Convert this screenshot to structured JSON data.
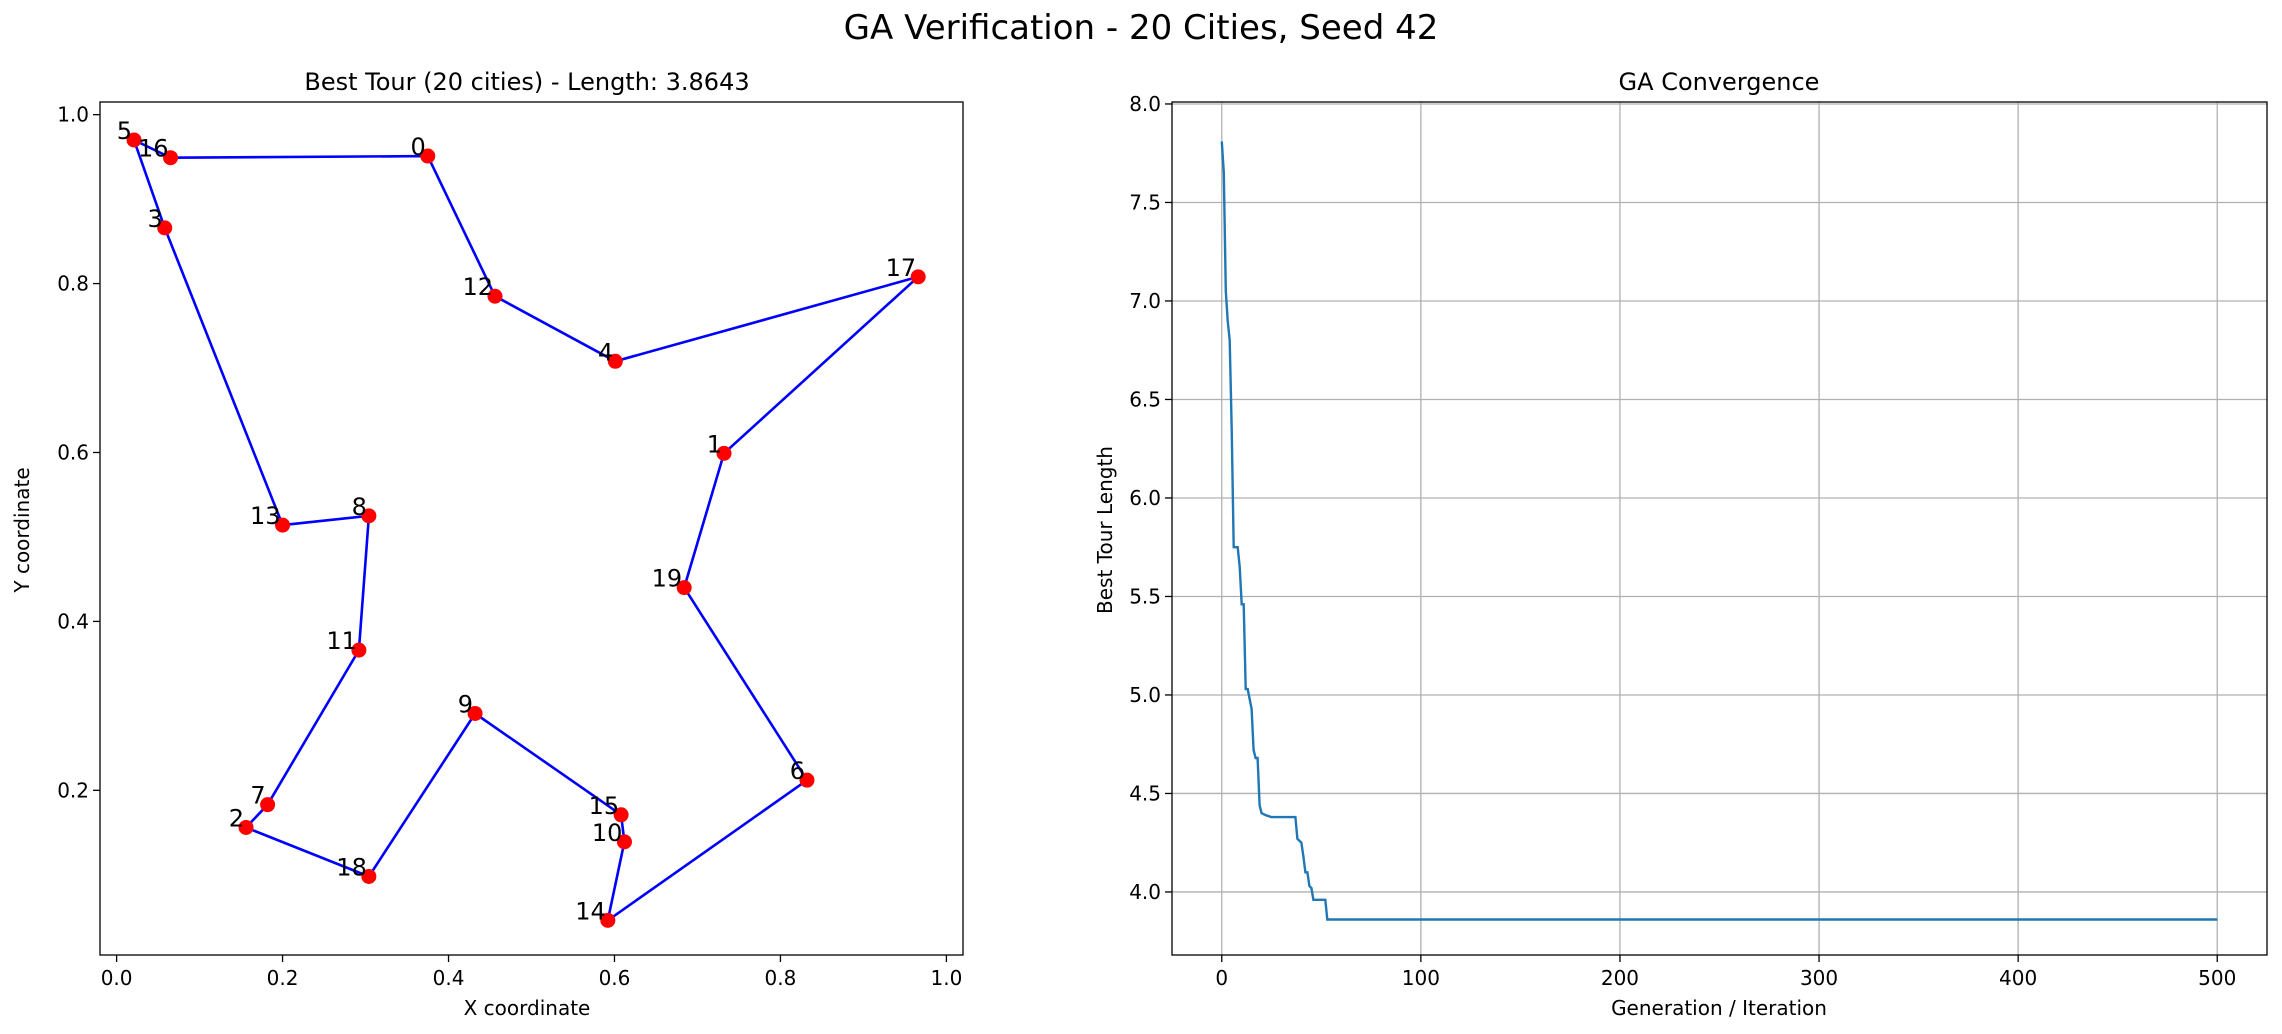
{
  "figure": {
    "title": "GA Verification - 20 Cities, Seed 42"
  },
  "chart_data": [
    {
      "type": "scatter",
      "title": "Best Tour (20 cities) - Length: 3.8643",
      "xlabel": "X coordinate",
      "ylabel": "Y coordinate",
      "xlim": [
        -0.02,
        1.02
      ],
      "ylim": [
        0.005,
        1.015
      ],
      "xticks": [
        0.0,
        0.2,
        0.4,
        0.6,
        0.8,
        1.0
      ],
      "xtick_labels": [
        "0.0",
        "0.2",
        "0.4",
        "0.6",
        "0.8",
        "1.0"
      ],
      "yticks": [
        0.2,
        0.4,
        0.6,
        0.8,
        1.0
      ],
      "ytick_labels": [
        "0.2",
        "0.4",
        "0.6",
        "0.8",
        "1.0"
      ],
      "grid": false,
      "line_color": "#0000ff",
      "point_color": "#ff0000",
      "cities": [
        {
          "id": "0",
          "x": 0.375,
          "y": 0.951
        },
        {
          "id": "1",
          "x": 0.732,
          "y": 0.599
        },
        {
          "id": "2",
          "x": 0.156,
          "y": 0.156
        },
        {
          "id": "3",
          "x": 0.058,
          "y": 0.866
        },
        {
          "id": "4",
          "x": 0.601,
          "y": 0.708
        },
        {
          "id": "5",
          "x": 0.021,
          "y": 0.97
        },
        {
          "id": "6",
          "x": 0.832,
          "y": 0.212
        },
        {
          "id": "7",
          "x": 0.182,
          "y": 0.183
        },
        {
          "id": "8",
          "x": 0.304,
          "y": 0.525
        },
        {
          "id": "9",
          "x": 0.432,
          "y": 0.291
        },
        {
          "id": "10",
          "x": 0.612,
          "y": 0.139
        },
        {
          "id": "11",
          "x": 0.292,
          "y": 0.366
        },
        {
          "id": "12",
          "x": 0.456,
          "y": 0.785
        },
        {
          "id": "13",
          "x": 0.2,
          "y": 0.514
        },
        {
          "id": "14",
          "x": 0.592,
          "y": 0.046
        },
        {
          "id": "15",
          "x": 0.608,
          "y": 0.171
        },
        {
          "id": "16",
          "x": 0.065,
          "y": 0.949
        },
        {
          "id": "17",
          "x": 0.966,
          "y": 0.808
        },
        {
          "id": "18",
          "x": 0.304,
          "y": 0.098
        },
        {
          "id": "19",
          "x": 0.684,
          "y": 0.44
        }
      ],
      "tour": [
        0,
        16,
        5,
        3,
        13,
        8,
        11,
        7,
        2,
        18,
        9,
        15,
        10,
        14,
        6,
        19,
        1,
        17,
        4,
        12
      ]
    },
    {
      "type": "line",
      "title": "GA Convergence",
      "xlabel": "Generation / Iteration",
      "ylabel": "Best Tour Length",
      "xlim": [
        -25,
        525
      ],
      "ylim": [
        3.68,
        8.01
      ],
      "xticks": [
        0,
        100,
        200,
        300,
        400,
        500
      ],
      "xtick_labels": [
        "0",
        "100",
        "200",
        "300",
        "400",
        "500"
      ],
      "yticks": [
        4.0,
        4.5,
        5.0,
        5.5,
        6.0,
        6.5,
        7.0,
        7.5,
        8.0
      ],
      "ytick_labels": [
        "4.0",
        "4.5",
        "5.0",
        "5.5",
        "6.0",
        "6.5",
        "7.0",
        "7.5",
        "8.0"
      ],
      "grid": true,
      "line_color": "#1f77b4",
      "x": [
        0,
        1,
        2,
        3,
        4,
        5,
        6,
        7,
        8,
        9,
        10,
        11,
        12,
        13,
        14,
        15,
        16,
        17,
        18,
        19,
        20,
        22,
        25,
        30,
        35,
        37,
        38,
        40,
        41,
        42,
        43,
        44,
        45,
        46,
        47,
        48,
        49,
        50,
        52,
        53,
        54,
        60,
        100,
        200,
        300,
        400,
        500
      ],
      "y": [
        7.81,
        7.65,
        7.05,
        6.9,
        6.8,
        6.35,
        5.75,
        5.75,
        5.75,
        5.65,
        5.46,
        5.46,
        5.03,
        5.03,
        4.98,
        4.93,
        4.72,
        4.68,
        4.68,
        4.44,
        4.4,
        4.39,
        4.38,
        4.38,
        4.38,
        4.38,
        4.27,
        4.25,
        4.18,
        4.1,
        4.1,
        4.03,
        4.02,
        3.96,
        3.96,
        3.96,
        3.96,
        3.96,
        3.96,
        3.86,
        3.86,
        3.86,
        3.86,
        3.86,
        3.86,
        3.86,
        3.86
      ]
    }
  ]
}
